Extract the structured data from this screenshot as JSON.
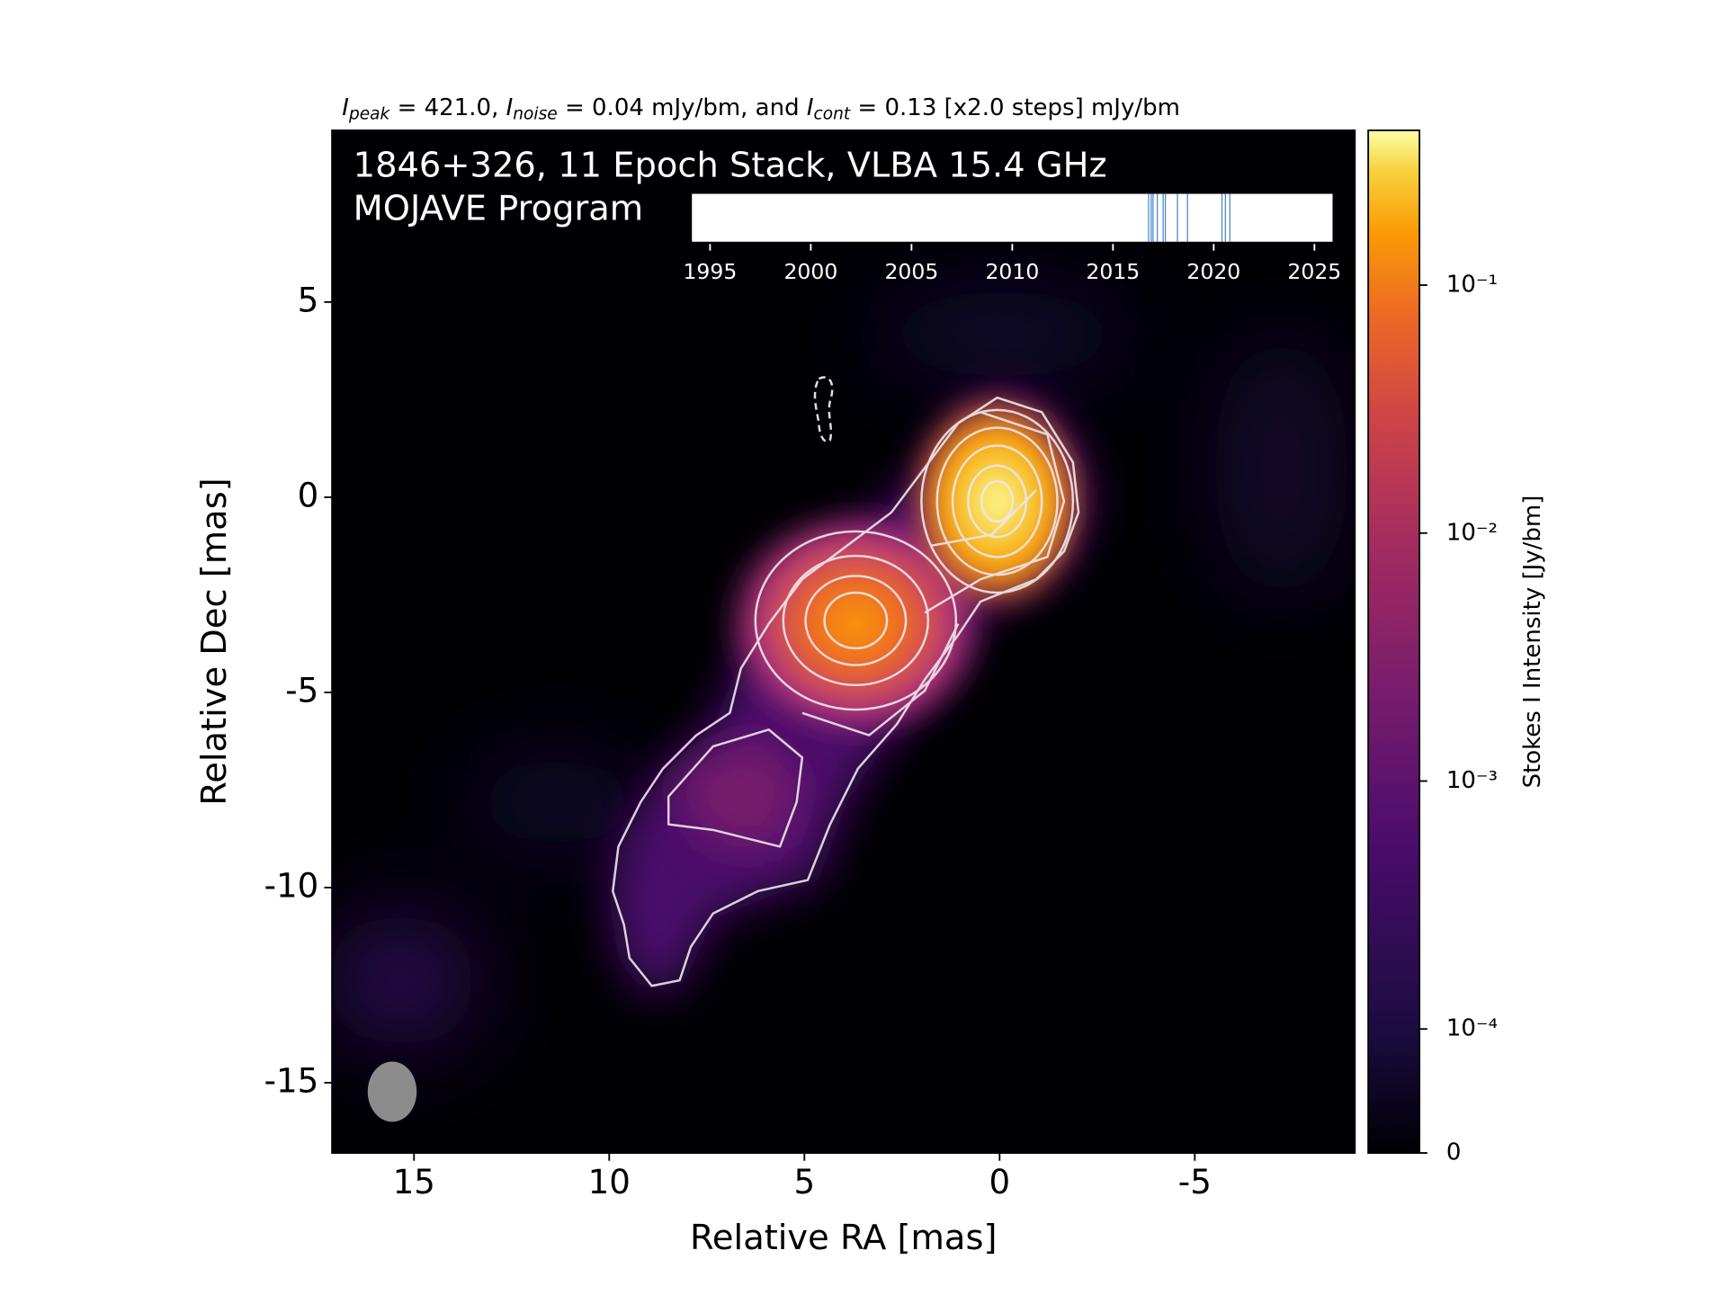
{
  "chart_data": {
    "type": "image",
    "subtitle": [
      {
        "symbol": "I",
        "sub": "peak",
        "text": " = 421.0, "
      },
      {
        "symbol": "I",
        "sub": "noise",
        "text": " = 0.04 mJy/bm, and "
      },
      {
        "symbol": "I",
        "sub": "cont",
        "text": " = 0.13 [x2.0 steps] mJy/bm"
      }
    ],
    "title": "1846+326, 11 Epoch Stack, VLBA 15.4 GHz",
    "program": "MOJAVE Program",
    "xlabel": "Relative RA [mas]",
    "ylabel": "Relative Dec [mas]",
    "xlim": [
      17.1,
      -9.1
    ],
    "ylim": [
      -16.8,
      9.4
    ],
    "xticks": [
      15,
      10,
      5,
      0,
      -5
    ],
    "yticks": [
      5,
      0,
      -5,
      -10,
      -15
    ],
    "colorbar": {
      "label": "Stokes I Intensity [Jy/bm]",
      "scale": "symlog",
      "linthresh": 0.0001,
      "linscale": 0.5,
      "clim": [
        0,
        0.421
      ],
      "ticks": [
        0,
        {
          "value": 0.0001,
          "label": "10⁻⁴"
        },
        {
          "value": 0.001,
          "label": "10⁻³"
        },
        {
          "value": 0.01,
          "label": "10⁻²"
        },
        {
          "value": 0.1,
          "label": "10⁻¹"
        }
      ]
    },
    "epochs": {
      "xlim": [
        1994.1,
        2025.9
      ],
      "xticks": [
        1995,
        2000,
        2005,
        2010,
        2015,
        2020,
        2025
      ],
      "values": [
        2016.77,
        2016.9,
        2016.99,
        2017.2,
        2017.49,
        2017.6,
        2018.2,
        2018.7,
        2020.41,
        2020.58,
        2020.8
      ],
      "color": "#4a86c8"
    }
  }
}
